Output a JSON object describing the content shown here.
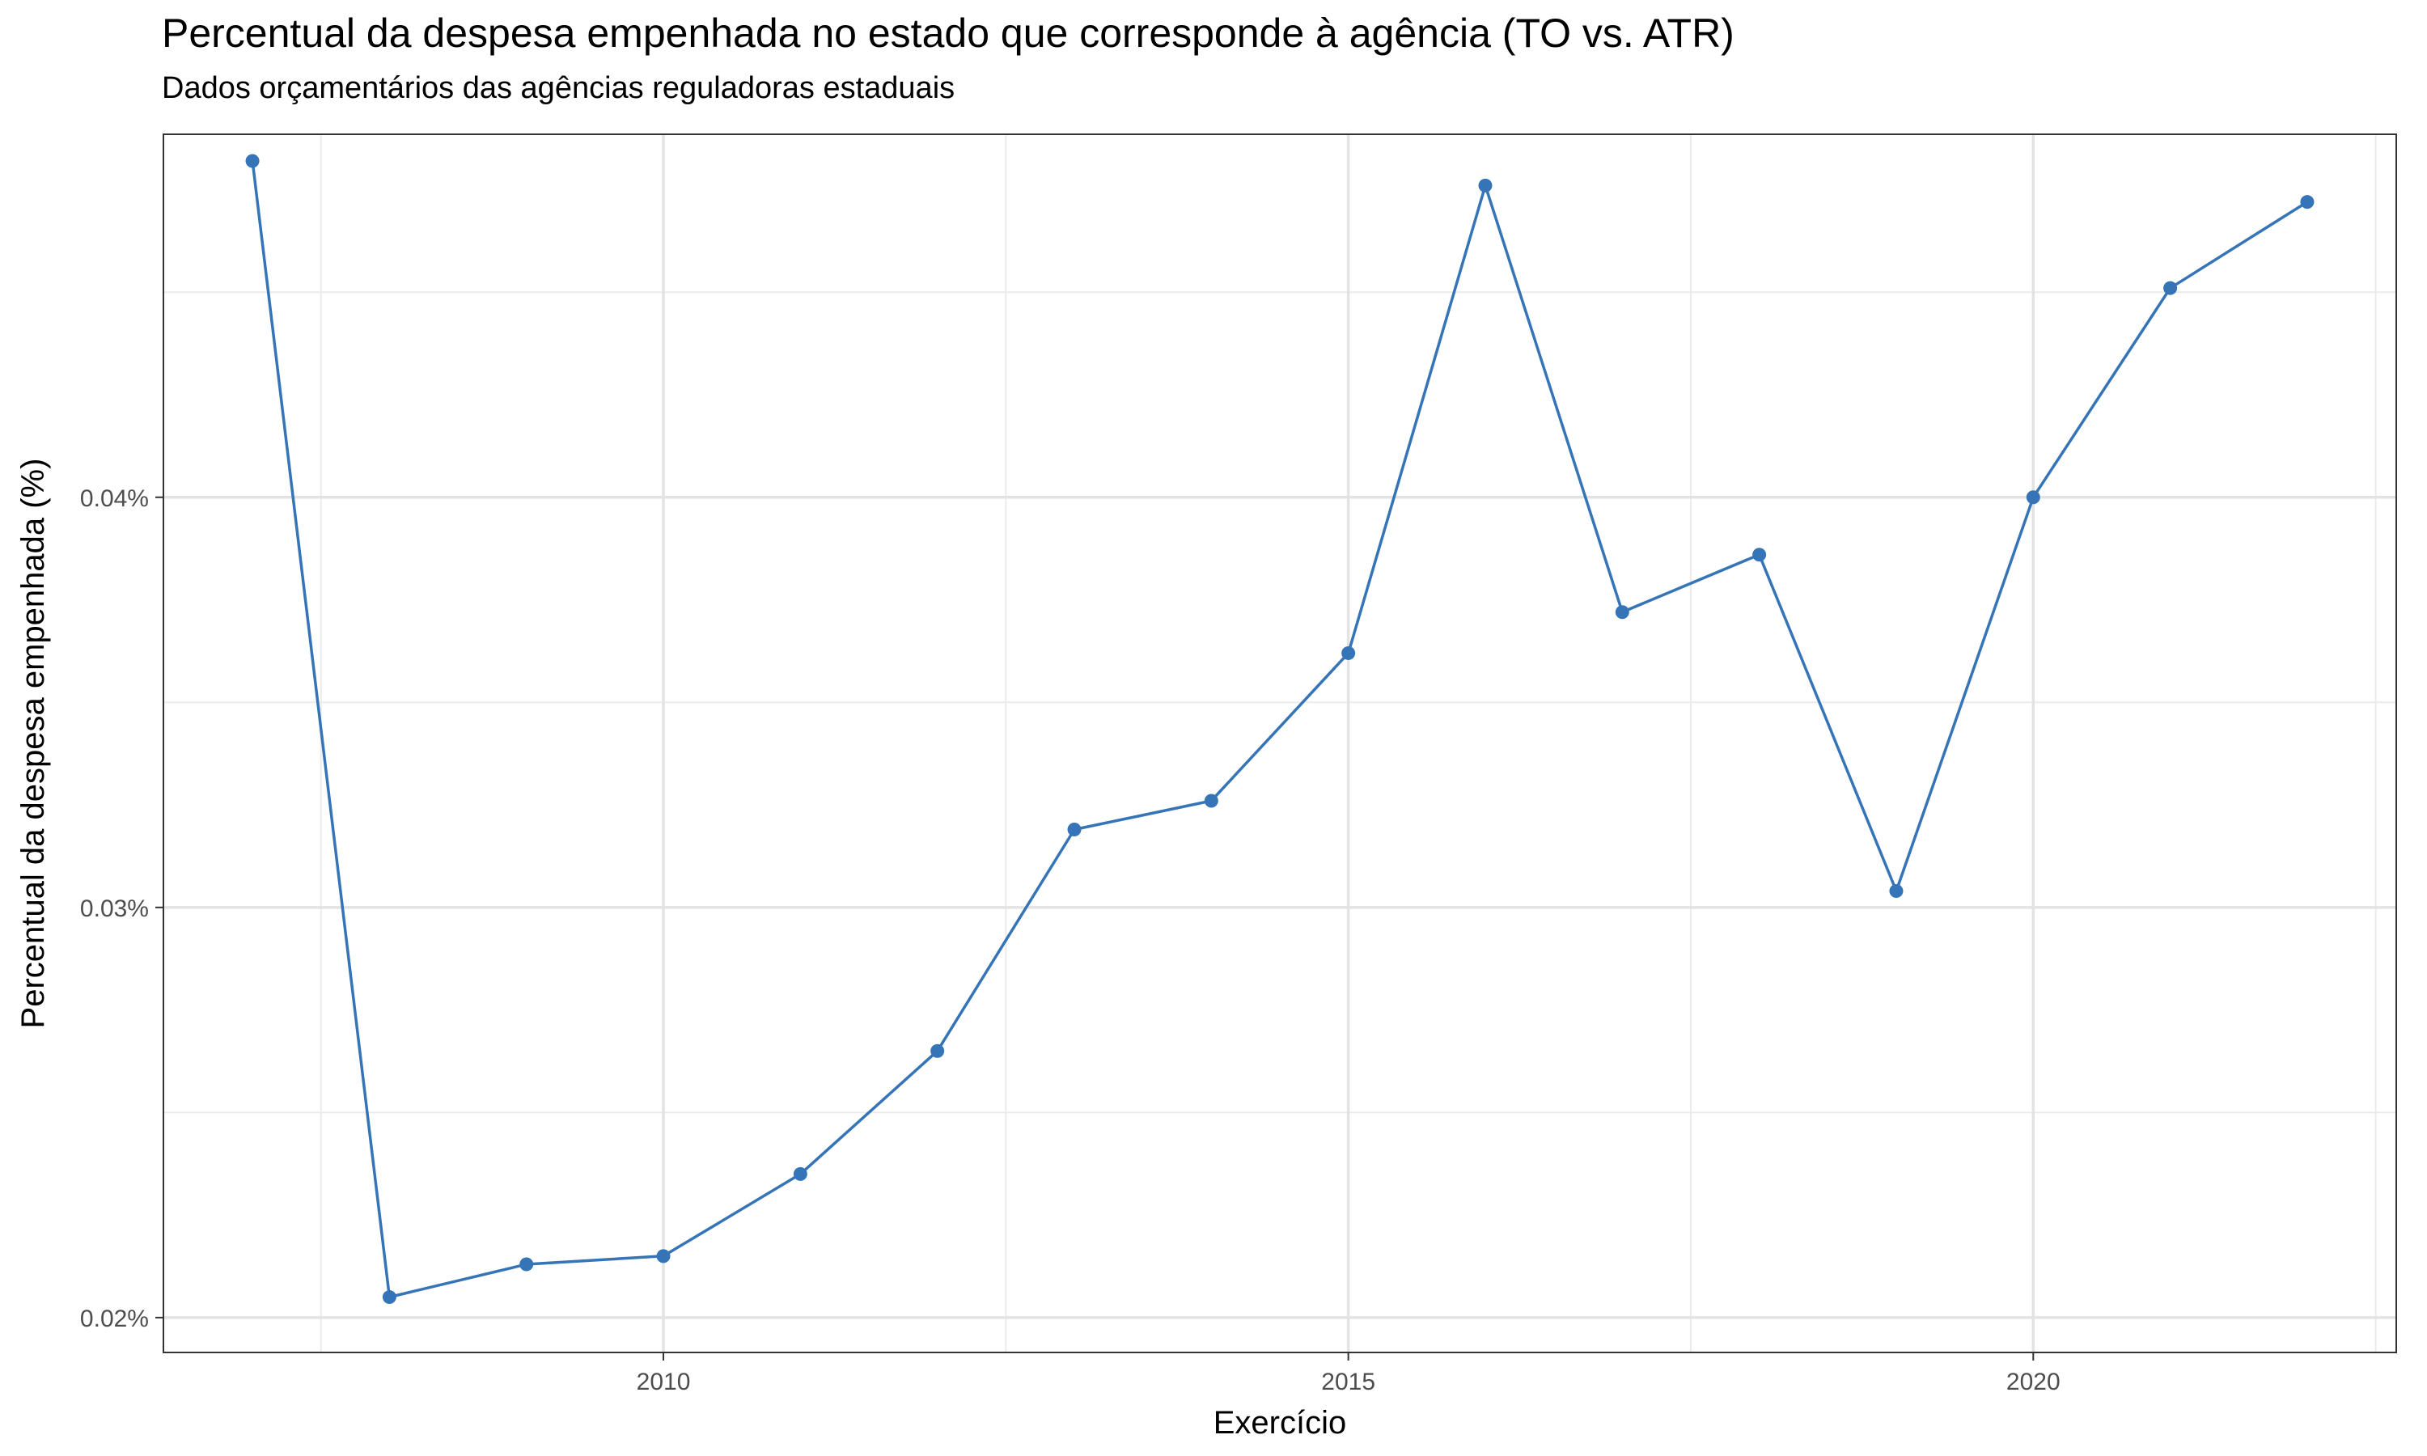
{
  "chart_data": {
    "type": "line",
    "title": "Percentual da despesa empenhada no estado que corresponde à agência (TO vs. ATR)",
    "subtitle": "Dados orçamentários das agências reguladoras estaduais",
    "xlabel": "Exercício",
    "ylabel": "Percentual da despesa empenhada (%)",
    "xlim": [
      2006.35,
      2022.65
    ],
    "ylim": [
      0.01915,
      0.04885
    ],
    "x_ticks": [
      2010,
      2015,
      2020
    ],
    "x_tick_labels": [
      "2010",
      "2015",
      "2020"
    ],
    "y_ticks": [
      0.02,
      0.03,
      0.04
    ],
    "y_tick_labels": [
      "0.02%",
      "0.03%",
      "0.04%"
    ],
    "grid": true,
    "legend": "none",
    "color": "#3574b7",
    "series": [
      {
        "x": [
          2007,
          2008,
          2009,
          2010,
          2011,
          2012,
          2013,
          2014,
          2015,
          2016,
          2017,
          2018,
          2019,
          2020,
          2021,
          2022
        ],
        "values": [
          0.0482,
          0.0205,
          0.0213,
          0.0215,
          0.0235,
          0.0265,
          0.0319,
          0.0326,
          0.0362,
          0.0476,
          0.0372,
          0.0386,
          0.0304,
          0.04,
          0.0451,
          0.0472
        ]
      }
    ]
  }
}
